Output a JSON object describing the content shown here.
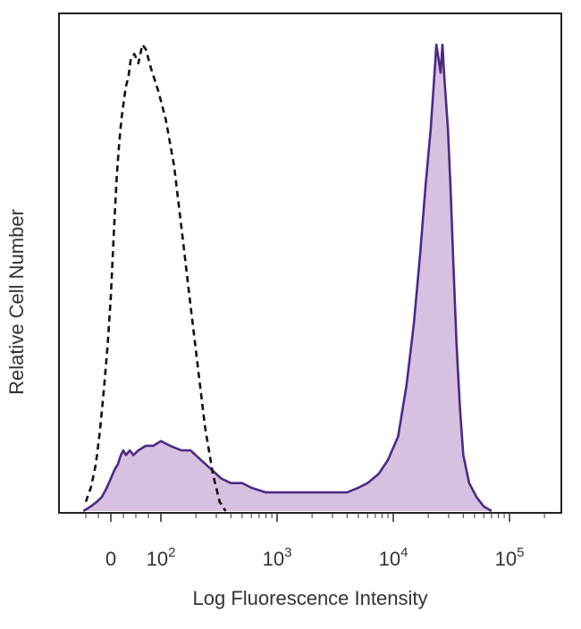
{
  "chart_data": {
    "type": "area",
    "title": "",
    "xlabel": "Log Fluorescence Intensity",
    "ylabel": "Relative Cell Number",
    "x_scale": "biexponential",
    "xlim": [
      -60,
      250000
    ],
    "ylim": [
      0,
      1.0
    ],
    "x_tick_labels": [
      {
        "value": 0,
        "base": "0",
        "exp": ""
      },
      {
        "value": 100,
        "base": "10",
        "exp": "2"
      },
      {
        "value": 1000,
        "base": "10",
        "exp": "3"
      },
      {
        "value": 10000,
        "base": "10",
        "exp": "4"
      },
      {
        "value": 100000,
        "base": "10",
        "exp": "5"
      }
    ],
    "grid": false,
    "legend": "none",
    "series": [
      {
        "style": "dashed-outline",
        "color": "#111111",
        "points": [
          [
            -50,
            0.02
          ],
          [
            -40,
            0.05
          ],
          [
            -30,
            0.1
          ],
          [
            -22,
            0.17
          ],
          [
            -14,
            0.26
          ],
          [
            -6,
            0.36
          ],
          [
            0,
            0.46
          ],
          [
            4,
            0.55
          ],
          [
            8,
            0.64
          ],
          [
            12,
            0.72
          ],
          [
            16,
            0.78
          ],
          [
            21,
            0.84
          ],
          [
            26,
            0.88
          ],
          [
            30,
            0.91
          ],
          [
            35,
            0.93
          ],
          [
            40,
            0.97
          ],
          [
            47,
            0.98
          ],
          [
            55,
            0.96
          ],
          [
            63,
            1.0
          ],
          [
            70,
            0.99
          ],
          [
            80,
            0.95
          ],
          [
            95,
            0.9
          ],
          [
            110,
            0.84
          ],
          [
            130,
            0.74
          ],
          [
            155,
            0.58
          ],
          [
            180,
            0.44
          ],
          [
            210,
            0.3
          ],
          [
            240,
            0.18
          ],
          [
            280,
            0.08
          ],
          [
            320,
            0.02
          ],
          [
            360,
            0.0
          ]
        ]
      },
      {
        "style": "filled",
        "color": "#4b2a87",
        "fill": "#d7c1e0",
        "points": [
          [
            -55,
            0.0
          ],
          [
            -40,
            0.01
          ],
          [
            -28,
            0.02
          ],
          [
            -18,
            0.03
          ],
          [
            -8,
            0.05
          ],
          [
            0,
            0.07
          ],
          [
            8,
            0.09
          ],
          [
            14,
            0.1
          ],
          [
            20,
            0.12
          ],
          [
            25,
            0.13
          ],
          [
            30,
            0.12
          ],
          [
            38,
            0.13
          ],
          [
            45,
            0.12
          ],
          [
            55,
            0.13
          ],
          [
            70,
            0.14
          ],
          [
            85,
            0.14
          ],
          [
            100,
            0.15
          ],
          [
            120,
            0.14
          ],
          [
            150,
            0.13
          ],
          [
            180,
            0.13
          ],
          [
            220,
            0.11
          ],
          [
            270,
            0.09
          ],
          [
            330,
            0.07
          ],
          [
            400,
            0.06
          ],
          [
            500,
            0.06
          ],
          [
            600,
            0.05
          ],
          [
            800,
            0.04
          ],
          [
            1000,
            0.04
          ],
          [
            1500,
            0.04
          ],
          [
            2000,
            0.04
          ],
          [
            3000,
            0.04
          ],
          [
            4000,
            0.04
          ],
          [
            5000,
            0.05
          ],
          [
            6000,
            0.06
          ],
          [
            7500,
            0.08
          ],
          [
            9000,
            0.11
          ],
          [
            11000,
            0.16
          ],
          [
            13000,
            0.27
          ],
          [
            15000,
            0.4
          ],
          [
            17000,
            0.55
          ],
          [
            19000,
            0.7
          ],
          [
            21000,
            0.82
          ],
          [
            22500,
            0.93
          ],
          [
            23500,
            1.0
          ],
          [
            24500,
            0.97
          ],
          [
            25500,
            0.94
          ],
          [
            26500,
            1.0
          ],
          [
            27500,
            0.93
          ],
          [
            29500,
            0.82
          ],
          [
            31000,
            0.7
          ],
          [
            33000,
            0.52
          ],
          [
            35000,
            0.36
          ],
          [
            37500,
            0.22
          ],
          [
            40000,
            0.12
          ],
          [
            45000,
            0.06
          ],
          [
            52000,
            0.03
          ],
          [
            60000,
            0.01
          ],
          [
            70000,
            0.0
          ]
        ]
      }
    ]
  }
}
